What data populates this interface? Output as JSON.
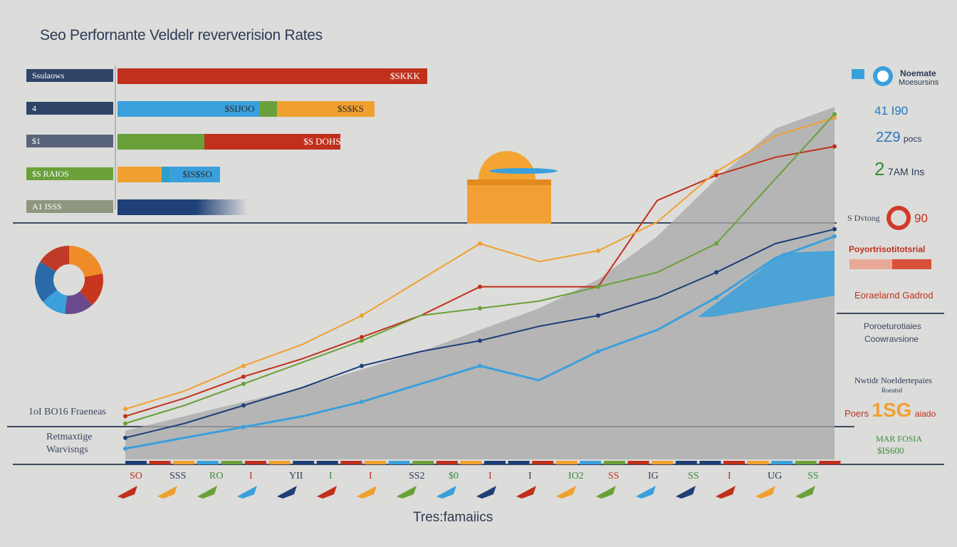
{
  "title": "Seo Perfornante Veldelr reververision Rates",
  "footer_title": "Tres:famaiics",
  "colors": {
    "navy": "#1f3f78",
    "red": "#c0301c",
    "orange": "#f0a030",
    "blue": "#3aa0dc",
    "green": "#6aa03a",
    "gray_area": "#a8a8a8"
  },
  "bar_chart": {
    "bars": [
      {
        "label": "Ssulaows",
        "value_label": "$SKKK",
        "label_color": "#2f4466",
        "segments": [
          {
            "color": "#c0301c",
            "fraction": 1.0
          }
        ],
        "length": 1.0
      },
      {
        "label": "4",
        "value_label": "$S$KS",
        "label_color": "#2f4466",
        "inner_label": "$SIJOO",
        "segments": [
          {
            "color": "#3aa0dc",
            "fraction": 0.55
          },
          {
            "color": "#6aa03a",
            "fraction": 0.07
          },
          {
            "color": "#f0a030",
            "fraction": 0.38
          }
        ],
        "length": 0.83
      },
      {
        "label": "$1",
        "value_label": "$S DOHS",
        "label_color": "#58647a",
        "segments": [
          {
            "color": "#6aa03a",
            "fraction": 0.39
          },
          {
            "color": "#c0301c",
            "fraction": 0.61
          }
        ],
        "length": 0.72
      },
      {
        "label": "$S RAIOS",
        "value_label": "$IS$SO",
        "label_color": "#6aa03a",
        "segments": [
          {
            "color": "#f0a030",
            "fraction": 0.43
          },
          {
            "color": "#2aa0c8",
            "fraction": 0.08
          },
          {
            "color": "#3aa0dc",
            "fraction": 0.49
          }
        ],
        "length": 0.33
      },
      {
        "label": "A1 ISSS",
        "value_label": "",
        "label_color": "#8e9680",
        "segments": [
          {
            "color": "#1f3f78",
            "fraction": 1.0
          }
        ],
        "length": 0.42
      }
    ]
  },
  "right_panel": {
    "logo_line1": "Noemate",
    "logo_line2": "Moesursins",
    "stat1": "41 I90",
    "stat2_value": "2Z9",
    "stat2_unit": "pocs",
    "stat3_value": "2",
    "stat3_unit": "7AM Ins",
    "stat4_label": "S Dvtong",
    "stat4_value": "90",
    "red_label": "Poyortrisotitotsrial",
    "orange_label": "Eoraelarnd Gadrod",
    "gray_label_1": "Poroeturotiaies",
    "gray_label_2": "Coowravsione",
    "nav_label_1": "Nwtidr Noeldertepaies",
    "nav_label_2": "Roeatsd",
    "big_label": "Poers",
    "big_value": "1SG",
    "big_suffix": "aiado",
    "green_label_1": "MAR FOSIA",
    "green_label_2": "$IS600"
  },
  "left_labels": {
    "label1": "1oI BO16 Fraeneas",
    "label2": "Retmaxtige",
    "label3": "Warvisngs"
  },
  "chart_data": {
    "type": "line",
    "title": "Seo Perfornante Veldelr reververision Rates",
    "xlabel": "",
    "ylabel": "",
    "x": [
      0,
      1,
      2,
      3,
      4,
      5,
      6,
      7,
      8,
      9,
      10,
      11,
      12
    ],
    "ylim": [
      0,
      100
    ],
    "grid": false,
    "series": [
      {
        "color": "#1f3f78",
        "values": [
          6,
          10,
          15,
          20,
          26,
          30,
          33,
          37,
          40,
          45,
          52,
          60,
          64
        ]
      },
      {
        "color": "#c0301c",
        "values": [
          12,
          17,
          23,
          28,
          34,
          40,
          48,
          48,
          48,
          72,
          79,
          84,
          87
        ]
      },
      {
        "color": "#f0a030",
        "values": [
          14,
          19,
          26,
          32,
          40,
          50,
          60,
          55,
          58,
          66,
          80,
          90,
          95
        ]
      },
      {
        "color": "#3aa0dc",
        "values": [
          3,
          6,
          9,
          12,
          16,
          21,
          26,
          22,
          30,
          36,
          45,
          56,
          62
        ]
      },
      {
        "color": "#6aa03a",
        "values": [
          10,
          15,
          21,
          27,
          33,
          40,
          42,
          44,
          48,
          52,
          60,
          78,
          96
        ]
      }
    ],
    "area": {
      "color": "#a8a8a8",
      "values": [
        8,
        12,
        16,
        20,
        25,
        30,
        36,
        42,
        50,
        62,
        78,
        92,
        98
      ]
    },
    "donut": {
      "values": [
        22,
        16,
        14,
        12,
        20,
        16
      ],
      "colors": [
        "#f08c28",
        "#c8351e",
        "#6a4a8c",
        "#3aa0dc",
        "#2a6aa8",
        "#c03a28"
      ]
    },
    "ticks": [
      "SO",
      "SSS",
      "RO",
      "I",
      "YII",
      "I",
      "I",
      "SS2",
      "$0",
      "I",
      "I",
      "IO2",
      "SS",
      "IG",
      "SS",
      "I",
      "UG",
      "SS"
    ]
  }
}
